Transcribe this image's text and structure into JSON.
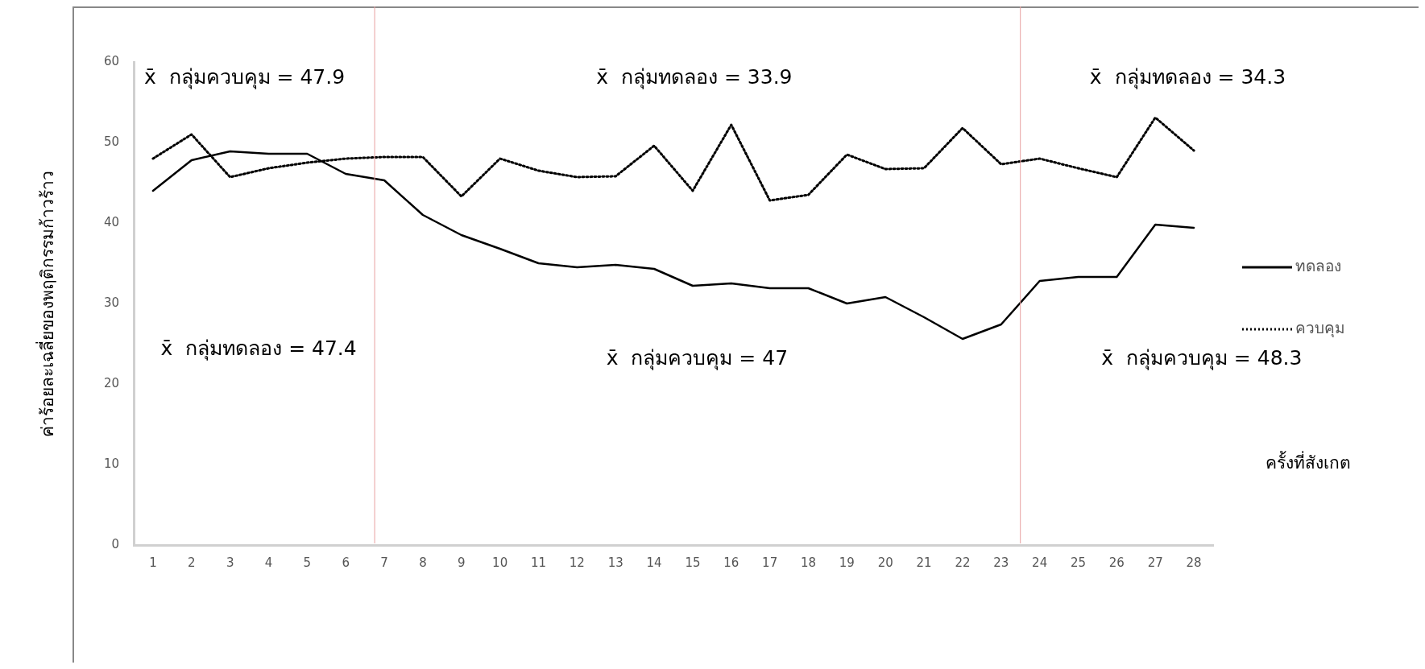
{
  "chart_data": {
    "type": "line",
    "xlabel": "ครั้งที่สังเกต",
    "ylabel": "ค่าร้อยละเฉลี่ยของพฤติกรรมก้าวร้าว",
    "x": [
      1,
      2,
      3,
      4,
      5,
      6,
      7,
      8,
      9,
      10,
      11,
      12,
      13,
      14,
      15,
      16,
      17,
      18,
      19,
      20,
      21,
      22,
      23,
      24,
      25,
      26,
      27,
      28
    ],
    "xlim": [
      0.5,
      28.5
    ],
    "xticks": [
      1,
      2,
      3,
      4,
      5,
      6,
      7,
      8,
      9,
      10,
      11,
      12,
      13,
      14,
      15,
      16,
      17,
      18,
      19,
      20,
      21,
      22,
      23,
      24,
      25,
      26,
      27,
      28
    ],
    "ylim": [
      0,
      60
    ],
    "yticks": [
      0,
      10,
      20,
      30,
      40,
      50,
      60
    ],
    "grid": false,
    "legend": "right",
    "marker": "none",
    "series": [
      {
        "name": "ทดลอง",
        "color": "#000000",
        "line_style": "solid",
        "values": [
          44,
          47.8,
          48.9,
          48.6,
          48.6,
          46.1,
          45.3,
          41,
          38.5,
          36.8,
          35,
          34.5,
          34.8,
          34.3,
          32.2,
          32.5,
          31.9,
          31.9,
          30,
          30.8,
          28.3,
          25.6,
          27.4,
          32.8,
          33.3,
          33.3,
          39.8,
          39.4
        ]
      },
      {
        "name": "ควบคุม",
        "color": "#000000",
        "line_style": "dotted",
        "values": [
          48,
          51,
          45.7,
          46.8,
          47.5,
          48,
          48.2,
          48.2,
          43.3,
          48,
          46.5,
          45.7,
          45.8,
          49.6,
          44,
          52.2,
          42.8,
          43.5,
          48.5,
          46.7,
          46.8,
          51.8,
          47.3,
          48,
          46.8,
          45.7,
          53.1,
          49
        ]
      }
    ],
    "ref_lines": [
      {
        "axis": "x",
        "value": 6.75,
        "color": "#e8a0a0"
      },
      {
        "axis": "x",
        "value": 23.5,
        "color": "#e8a0a0"
      }
    ],
    "annotations": [
      "x̄  กลุ่มควบคุม = 47.9",
      "x̄  กลุ่มทดลอง = 33.9",
      "x̄  กลุ่มทดลอง = 34.3",
      "x̄  กลุ่มทดลอง = 47.4",
      "x̄  กลุ่มควบคุม = 47",
      "x̄  กลุ่มควบคุม = 48.3"
    ]
  }
}
